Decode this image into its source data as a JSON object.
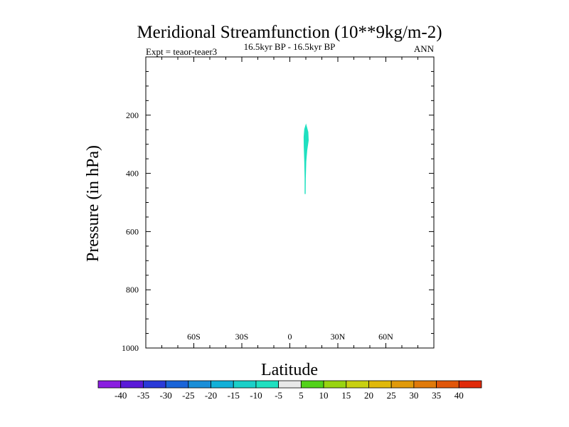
{
  "chart_data": {
    "type": "contour",
    "title": "Meridional Streamfunction (10**9kg/m-2)",
    "subtitle": "16.5kyr BP - 16.5kyr BP",
    "left_label": "Expt = teaor-teaer3",
    "right_label": "ANN",
    "xlabel": "Latitude",
    "ylabel": "Pressure (in hPa)",
    "xlim": [
      -90,
      90
    ],
    "ylim": [
      0,
      1000
    ],
    "y_inverted": true,
    "x_major_ticks": [
      {
        "value": -60,
        "label": "60S"
      },
      {
        "value": -30,
        "label": "30S"
      },
      {
        "value": 0,
        "label": "0"
      },
      {
        "value": 30,
        "label": "30N"
      },
      {
        "value": 60,
        "label": "60N"
      }
    ],
    "x_minor_step": 10,
    "y_major_ticks": [
      {
        "value": 200,
        "label": "200"
      },
      {
        "value": 400,
        "label": "400"
      },
      {
        "value": 600,
        "label": "600"
      },
      {
        "value": 800,
        "label": "800"
      },
      {
        "value": 1000,
        "label": "1000"
      }
    ],
    "y_minor_step": 50,
    "filled_regions": [
      {
        "level_range": [
          -10,
          -5
        ],
        "color": "#1fe0c0",
        "outline": [
          [
            9.4,
            470
          ],
          [
            9.4,
            415
          ],
          [
            9.2,
            360
          ],
          [
            8.9,
            310
          ],
          [
            8.8,
            275
          ],
          [
            9.2,
            248
          ],
          [
            10.1,
            232
          ],
          [
            11.4,
            258
          ],
          [
            11.6,
            287
          ],
          [
            10.7,
            320
          ],
          [
            10.1,
            360
          ],
          [
            9.8,
            420
          ],
          [
            9.7,
            470
          ]
        ]
      }
    ],
    "colorbar": {
      "labels": [
        "-40",
        "-35",
        "-30",
        "-25",
        "-20",
        "-15",
        "-10",
        "-5",
        "5",
        "10",
        "15",
        "20",
        "25",
        "30",
        "35",
        "40"
      ],
      "colors": [
        "#8a1ee0",
        "#5a1ad8",
        "#2a3ad8",
        "#1a64d8",
        "#1a8ed8",
        "#12b0d8",
        "#1ad0c8",
        "#1fe0c0",
        "#e8e8e8",
        "#52d21a",
        "#98d410",
        "#c8d010",
        "#e0b80a",
        "#e09a0a",
        "#e07a0a",
        "#e0560a",
        "#e02a0a"
      ]
    }
  }
}
